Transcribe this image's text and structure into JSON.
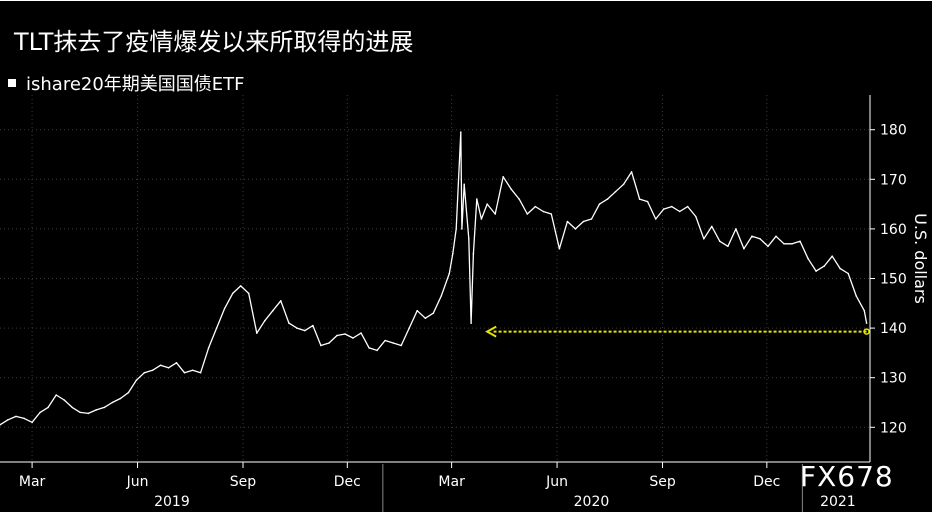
{
  "title": "TLT抹去了疫情爆发以来所取得的进展",
  "watermark": "FX678",
  "colors": {
    "background": "#000000",
    "line": "#ffffff",
    "arrow": "#e6e600",
    "grid": "#3a3a3a"
  },
  "chart_data": {
    "type": "line",
    "title": "TLT抹去了疫情爆发以来所取得的进展",
    "ylabel": "U.S. dollars",
    "ylim": [
      113,
      187
    ],
    "yticks": [
      120,
      130,
      140,
      150,
      160,
      170,
      180
    ],
    "grid": true,
    "legend_position": "top-left",
    "x_month_ticks": [
      {
        "label": "Mar",
        "date": "2019-03-01"
      },
      {
        "label": "Jun",
        "date": "2019-06-01"
      },
      {
        "label": "Sep",
        "date": "2019-09-01"
      },
      {
        "label": "Dec",
        "date": "2019-12-01"
      },
      {
        "label": "Mar",
        "date": "2020-03-01"
      },
      {
        "label": "Jun",
        "date": "2020-06-01"
      },
      {
        "label": "Sep",
        "date": "2020-09-01"
      },
      {
        "label": "Dec",
        "date": "2020-12-01"
      }
    ],
    "x_year_labels": [
      {
        "label": "2019",
        "date": "2019-07-01"
      },
      {
        "label": "2020",
        "date": "2020-07-01"
      },
      {
        "label": "2021",
        "date": "2021-02-01"
      }
    ],
    "x_range": [
      "2019-02-01",
      "2021-03-01"
    ],
    "series": [
      {
        "name": "ishare20年期美国国债ETF",
        "points": [
          [
            "2019-02-01",
            120.5
          ],
          [
            "2019-02-08",
            121.5
          ],
          [
            "2019-02-15",
            122.2
          ],
          [
            "2019-02-22",
            121.8
          ],
          [
            "2019-03-01",
            121.0
          ],
          [
            "2019-03-08",
            123.0
          ],
          [
            "2019-03-15",
            124.0
          ],
          [
            "2019-03-22",
            126.5
          ],
          [
            "2019-03-29",
            125.5
          ],
          [
            "2019-04-05",
            124.0
          ],
          [
            "2019-04-12",
            123.0
          ],
          [
            "2019-04-19",
            122.8
          ],
          [
            "2019-04-26",
            123.5
          ],
          [
            "2019-05-03",
            124.0
          ],
          [
            "2019-05-10",
            125.0
          ],
          [
            "2019-05-17",
            125.8
          ],
          [
            "2019-05-24",
            127.0
          ],
          [
            "2019-05-31",
            129.5
          ],
          [
            "2019-06-07",
            131.0
          ],
          [
            "2019-06-14",
            131.5
          ],
          [
            "2019-06-21",
            132.5
          ],
          [
            "2019-06-28",
            132.0
          ],
          [
            "2019-07-05",
            133.0
          ],
          [
            "2019-07-12",
            131.0
          ],
          [
            "2019-07-19",
            131.5
          ],
          [
            "2019-07-26",
            131.0
          ],
          [
            "2019-08-02",
            136.0
          ],
          [
            "2019-08-09",
            140.0
          ],
          [
            "2019-08-16",
            144.0
          ],
          [
            "2019-08-23",
            147.0
          ],
          [
            "2019-08-30",
            148.5
          ],
          [
            "2019-09-06",
            147.0
          ],
          [
            "2019-09-13",
            139.0
          ],
          [
            "2019-09-20",
            141.5
          ],
          [
            "2019-09-27",
            143.5
          ],
          [
            "2019-10-04",
            145.5
          ],
          [
            "2019-10-11",
            141.0
          ],
          [
            "2019-10-18",
            140.0
          ],
          [
            "2019-10-25",
            139.5
          ],
          [
            "2019-11-01",
            140.5
          ],
          [
            "2019-11-08",
            136.5
          ],
          [
            "2019-11-15",
            137.0
          ],
          [
            "2019-11-22",
            138.5
          ],
          [
            "2019-11-29",
            138.8
          ],
          [
            "2019-12-06",
            138.0
          ],
          [
            "2019-12-13",
            139.0
          ],
          [
            "2019-12-20",
            136.0
          ],
          [
            "2019-12-27",
            135.5
          ],
          [
            "2020-01-03",
            137.5
          ],
          [
            "2020-01-10",
            137.0
          ],
          [
            "2020-01-17",
            136.5
          ],
          [
            "2020-01-24",
            140.0
          ],
          [
            "2020-01-31",
            143.5
          ],
          [
            "2020-02-07",
            142.0
          ],
          [
            "2020-02-14",
            143.0
          ],
          [
            "2020-02-21",
            146.5
          ],
          [
            "2020-02-28",
            151.0
          ],
          [
            "2020-03-02",
            155.0
          ],
          [
            "2020-03-05",
            160.0
          ],
          [
            "2020-03-09",
            179.5
          ],
          [
            "2020-03-10",
            160.0
          ],
          [
            "2020-03-12",
            169.0
          ],
          [
            "2020-03-16",
            158.0
          ],
          [
            "2020-03-18",
            141.0
          ],
          [
            "2020-03-20",
            155.0
          ],
          [
            "2020-03-23",
            166.0
          ],
          [
            "2020-03-27",
            162.0
          ],
          [
            "2020-04-01",
            165.0
          ],
          [
            "2020-04-08",
            163.0
          ],
          [
            "2020-04-15",
            170.5
          ],
          [
            "2020-04-22",
            168.0
          ],
          [
            "2020-04-29",
            166.0
          ],
          [
            "2020-05-06",
            163.0
          ],
          [
            "2020-05-13",
            164.5
          ],
          [
            "2020-05-20",
            163.5
          ],
          [
            "2020-05-27",
            163.0
          ],
          [
            "2020-06-03",
            156.0
          ],
          [
            "2020-06-10",
            161.5
          ],
          [
            "2020-06-17",
            160.0
          ],
          [
            "2020-06-24",
            161.5
          ],
          [
            "2020-07-01",
            162.0
          ],
          [
            "2020-07-08",
            165.0
          ],
          [
            "2020-07-15",
            166.0
          ],
          [
            "2020-07-22",
            167.5
          ],
          [
            "2020-07-29",
            169.0
          ],
          [
            "2020-08-05",
            171.5
          ],
          [
            "2020-08-12",
            166.0
          ],
          [
            "2020-08-19",
            165.5
          ],
          [
            "2020-08-26",
            162.0
          ],
          [
            "2020-09-02",
            164.0
          ],
          [
            "2020-09-09",
            164.5
          ],
          [
            "2020-09-16",
            163.5
          ],
          [
            "2020-09-23",
            164.5
          ],
          [
            "2020-09-30",
            162.5
          ],
          [
            "2020-10-07",
            158.0
          ],
          [
            "2020-10-14",
            160.5
          ],
          [
            "2020-10-21",
            157.5
          ],
          [
            "2020-10-28",
            156.5
          ],
          [
            "2020-11-04",
            160.0
          ],
          [
            "2020-11-11",
            156.0
          ],
          [
            "2020-11-18",
            158.5
          ],
          [
            "2020-11-25",
            158.0
          ],
          [
            "2020-12-02",
            156.5
          ],
          [
            "2020-12-09",
            158.5
          ],
          [
            "2020-12-16",
            157.0
          ],
          [
            "2020-12-23",
            157.0
          ],
          [
            "2020-12-30",
            157.5
          ],
          [
            "2021-01-06",
            154.0
          ],
          [
            "2021-01-13",
            151.5
          ],
          [
            "2021-01-20",
            152.5
          ],
          [
            "2021-01-27",
            154.5
          ],
          [
            "2021-02-03",
            152.0
          ],
          [
            "2021-02-10",
            151.0
          ],
          [
            "2021-02-17",
            146.5
          ],
          [
            "2021-02-24",
            143.5
          ],
          [
            "2021-02-26",
            141.0
          ]
        ]
      }
    ],
    "annotations": [
      {
        "type": "arrow",
        "from": [
          "2021-02-26",
          139.3
        ],
        "to": [
          "2020-04-01",
          139.3
        ]
      }
    ]
  }
}
